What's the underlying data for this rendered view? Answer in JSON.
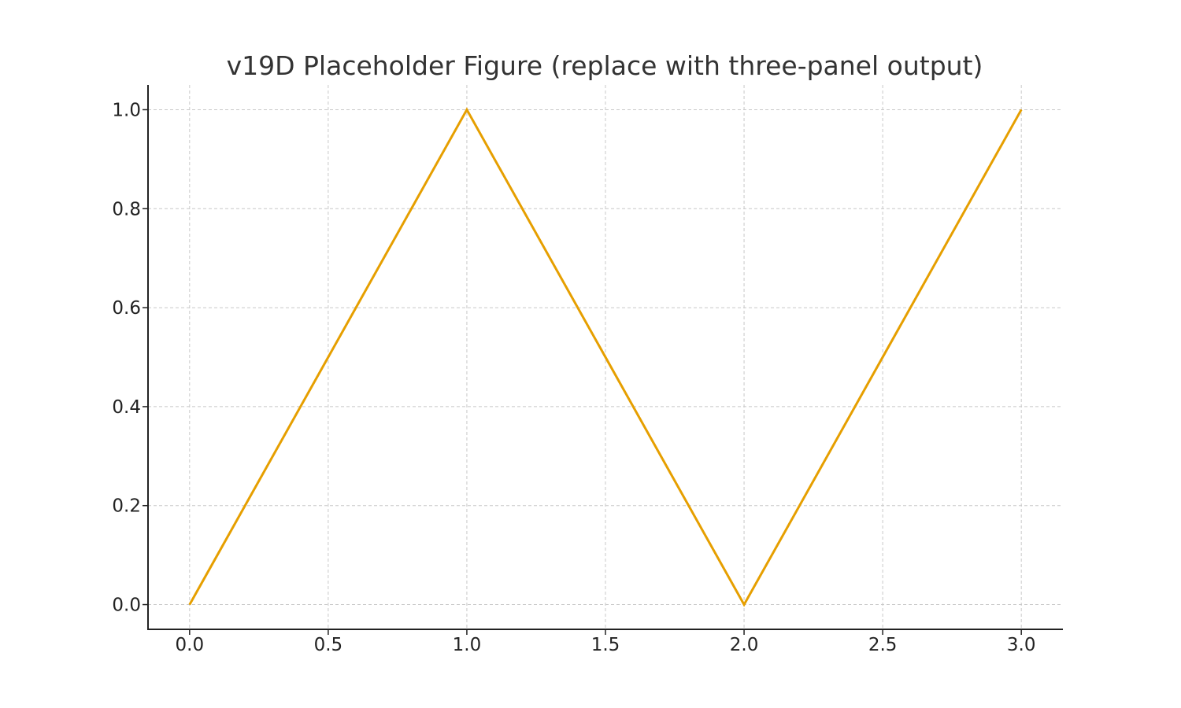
{
  "chart_data": {
    "type": "line",
    "title": "v19D Placeholder Figure (replace with three-panel output)",
    "xlabel": "",
    "ylabel": "",
    "xlim": [
      -0.15,
      3.15
    ],
    "ylim": [
      -0.05,
      1.05
    ],
    "x_ticks": [
      0.0,
      0.5,
      1.0,
      1.5,
      2.0,
      2.5,
      3.0
    ],
    "x_tick_labels": [
      "0.0",
      "0.5",
      "1.0",
      "1.5",
      "2.0",
      "2.5",
      "3.0"
    ],
    "y_ticks": [
      0.0,
      0.2,
      0.4,
      0.6,
      0.8,
      1.0
    ],
    "y_tick_labels": [
      "0.0",
      "0.2",
      "0.4",
      "0.6",
      "0.8",
      "1.0"
    ],
    "grid": true,
    "series": [
      {
        "x": [
          0,
          1,
          2,
          3
        ],
        "y": [
          0,
          1,
          0,
          1
        ],
        "color": "#E69F00"
      }
    ]
  }
}
